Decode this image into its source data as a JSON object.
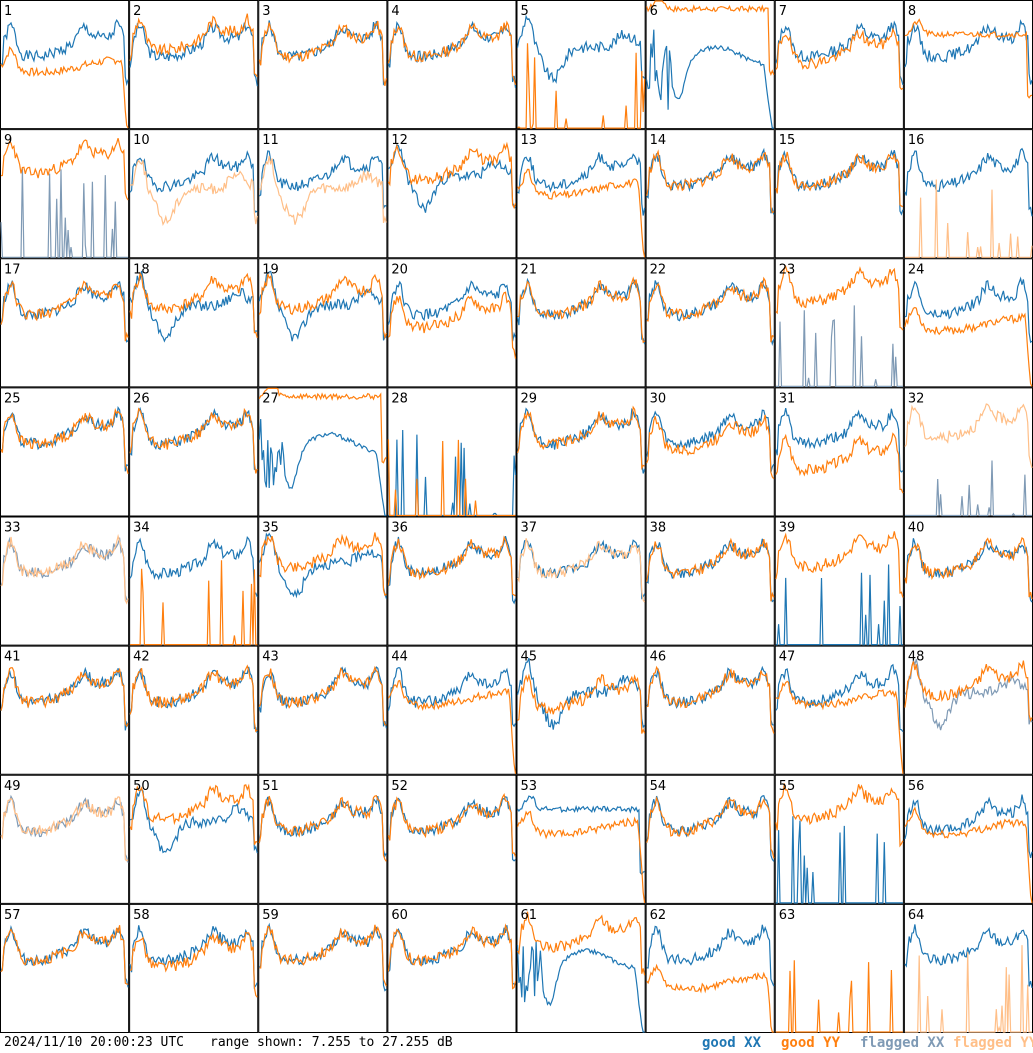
{
  "footer": {
    "timestamp": "2024/11/10 20:00:23 UTC",
    "range": "range shown: 7.255 to 27.255 dB"
  },
  "legend": {
    "good_xx": "good XX",
    "good_yy": "good YY",
    "flagged_xx": "flagged XX",
    "flagged_yy": "flagged YY"
  },
  "colors": {
    "good_xx": "#1f77b4",
    "good_yy": "#ff7f0e",
    "flagged_xx": "#7f9ab5",
    "flagged_yy": "#ffbf88"
  },
  "chart_data": {
    "type": "line",
    "layout": "8x8 panel grid",
    "ylim": [
      7.255,
      27.255
    ],
    "yunit": "dB",
    "grid": false,
    "panels": [
      {
        "label": "1",
        "xx": "good",
        "yy": "good",
        "xx_shape": "A",
        "yy_shape": "drop",
        "yy_off": -3
      },
      {
        "label": "2",
        "xx": "good",
        "yy": "good",
        "xx_shape": "A",
        "yy_shape": "A",
        "yy_off": 1
      },
      {
        "label": "3",
        "xx": "good",
        "yy": "good",
        "xx_shape": "A",
        "yy_shape": "A",
        "yy_off": 0
      },
      {
        "label": "4",
        "xx": "good",
        "yy": "good",
        "xx_shape": "A",
        "yy_shape": "A",
        "yy_off": 0
      },
      {
        "label": "5",
        "xx": "good",
        "yy": "good",
        "xx_shape": "B",
        "yy_shape": "spiky",
        "yy_off": 0
      },
      {
        "label": "6",
        "xx": "good",
        "yy": "good",
        "xx_shape": "C",
        "yy_shape": "flat",
        "yy_off": 4
      },
      {
        "label": "7",
        "xx": "good",
        "yy": "good",
        "xx_shape": "A",
        "yy_shape": "A",
        "yy_off": -1
      },
      {
        "label": "8",
        "xx": "good",
        "yy": "good",
        "xx_shape": "A",
        "yy_shape": "flat",
        "yy_off": 0
      },
      {
        "label": "9",
        "xx": "flagged",
        "yy": "good",
        "xx_shape": "spiky",
        "yy_shape": "A",
        "yy_off": 2
      },
      {
        "label": "10",
        "xx": "good",
        "yy": "flagged",
        "xx_shape": "A",
        "yy_shape": "B",
        "yy_off": -2
      },
      {
        "label": "11",
        "xx": "good",
        "yy": "flagged",
        "xx_shape": "A",
        "yy_shape": "B",
        "yy_off": -2
      },
      {
        "label": "12",
        "xx": "good",
        "yy": "good",
        "xx_shape": "B",
        "yy_shape": "A",
        "yy_off": 1
      },
      {
        "label": "13",
        "xx": "good",
        "yy": "good",
        "xx_shape": "A",
        "yy_shape": "drop",
        "yy_off": -2
      },
      {
        "label": "14",
        "xx": "good",
        "yy": "good",
        "xx_shape": "A",
        "yy_shape": "A",
        "yy_off": 0
      },
      {
        "label": "15",
        "xx": "good",
        "yy": "good",
        "xx_shape": "A",
        "yy_shape": "A",
        "yy_off": 0
      },
      {
        "label": "16",
        "xx": "good",
        "yy": "flagged",
        "xx_shape": "A",
        "yy_shape": "spiky",
        "yy_off": 0
      },
      {
        "label": "17",
        "xx": "good",
        "yy": "good",
        "xx_shape": "A",
        "yy_shape": "A",
        "yy_off": 0
      },
      {
        "label": "18",
        "xx": "good",
        "yy": "good",
        "xx_shape": "B",
        "yy_shape": "A",
        "yy_off": 1
      },
      {
        "label": "19",
        "xx": "good",
        "yy": "good",
        "xx_shape": "B",
        "yy_shape": "A",
        "yy_off": 1
      },
      {
        "label": "20",
        "xx": "good",
        "yy": "good",
        "xx_shape": "A",
        "yy_shape": "A",
        "yy_off": -2
      },
      {
        "label": "21",
        "xx": "good",
        "yy": "good",
        "xx_shape": "A",
        "yy_shape": "A",
        "yy_off": 0
      },
      {
        "label": "22",
        "xx": "good",
        "yy": "good",
        "xx_shape": "A",
        "yy_shape": "A",
        "yy_off": 0
      },
      {
        "label": "23",
        "xx": "flagged",
        "yy": "good",
        "xx_shape": "spiky",
        "yy_shape": "A",
        "yy_off": 2
      },
      {
        "label": "24",
        "xx": "good",
        "yy": "good",
        "xx_shape": "A",
        "yy_shape": "drop",
        "yy_off": -3
      },
      {
        "label": "25",
        "xx": "good",
        "yy": "good",
        "xx_shape": "A",
        "yy_shape": "A",
        "yy_off": 0
      },
      {
        "label": "26",
        "xx": "good",
        "yy": "good",
        "xx_shape": "A",
        "yy_shape": "A",
        "yy_off": 0
      },
      {
        "label": "27",
        "xx": "good",
        "yy": "good",
        "xx_shape": "C",
        "yy_shape": "flat",
        "yy_off": 4
      },
      {
        "label": "28",
        "xx": "good",
        "yy": "good",
        "xx_shape": "spiky",
        "yy_shape": "spiky",
        "yy_off": 0
      },
      {
        "label": "29",
        "xx": "good",
        "yy": "good",
        "xx_shape": "A",
        "yy_shape": "A",
        "yy_off": 0
      },
      {
        "label": "30",
        "xx": "good",
        "yy": "good",
        "xx_shape": "A",
        "yy_shape": "A",
        "yy_off": -1
      },
      {
        "label": "31",
        "xx": "good",
        "yy": "good",
        "xx_shape": "A",
        "yy_shape": "A",
        "yy_off": -4
      },
      {
        "label": "32",
        "xx": "flagged",
        "yy": "flagged",
        "xx_shape": "spiky",
        "yy_shape": "A",
        "yy_off": 1
      },
      {
        "label": "33",
        "xx": "flagged",
        "yy": "flagged",
        "xx_shape": "A",
        "yy_shape": "A",
        "yy_off": 0
      },
      {
        "label": "34",
        "xx": "good",
        "yy": "good",
        "xx_shape": "A",
        "yy_shape": "spiky",
        "yy_off": 0
      },
      {
        "label": "35",
        "xx": "good",
        "yy": "good",
        "xx_shape": "B",
        "yy_shape": "A",
        "yy_off": 1
      },
      {
        "label": "36",
        "xx": "good",
        "yy": "good",
        "xx_shape": "A",
        "yy_shape": "A",
        "yy_off": 0
      },
      {
        "label": "37",
        "xx": "good",
        "yy": "flagged",
        "xx_shape": "A",
        "yy_shape": "A",
        "yy_off": 0
      },
      {
        "label": "38",
        "xx": "good",
        "yy": "good",
        "xx_shape": "A",
        "yy_shape": "A",
        "yy_off": 0
      },
      {
        "label": "39",
        "xx": "good",
        "yy": "good",
        "xx_shape": "spiky",
        "yy_shape": "A",
        "yy_off": 1
      },
      {
        "label": "40",
        "xx": "good",
        "yy": "good",
        "xx_shape": "A",
        "yy_shape": "A",
        "yy_off": 0
      },
      {
        "label": "41",
        "xx": "good",
        "yy": "good",
        "xx_shape": "A",
        "yy_shape": "A",
        "yy_off": 0
      },
      {
        "label": "42",
        "xx": "good",
        "yy": "good",
        "xx_shape": "A",
        "yy_shape": "A",
        "yy_off": 0
      },
      {
        "label": "43",
        "xx": "good",
        "yy": "good",
        "xx_shape": "A",
        "yy_shape": "A",
        "yy_off": 0
      },
      {
        "label": "44",
        "xx": "good",
        "yy": "good",
        "xx_shape": "A",
        "yy_shape": "drop",
        "yy_off": -1
      },
      {
        "label": "45",
        "xx": "good",
        "yy": "good",
        "xx_shape": "B",
        "yy_shape": "A",
        "yy_off": -1
      },
      {
        "label": "46",
        "xx": "good",
        "yy": "good",
        "xx_shape": "A",
        "yy_shape": "A",
        "yy_off": 0
      },
      {
        "label": "47",
        "xx": "good",
        "yy": "good",
        "xx_shape": "A",
        "yy_shape": "drop",
        "yy_off": -1
      },
      {
        "label": "48",
        "xx": "flagged",
        "yy": "good",
        "xx_shape": "B",
        "yy_shape": "A",
        "yy_off": 1
      },
      {
        "label": "49",
        "xx": "flagged",
        "yy": "flagged",
        "xx_shape": "A",
        "yy_shape": "A",
        "yy_off": 0
      },
      {
        "label": "50",
        "xx": "good",
        "yy": "good",
        "xx_shape": "B",
        "yy_shape": "A",
        "yy_off": 2
      },
      {
        "label": "51",
        "xx": "good",
        "yy": "good",
        "xx_shape": "A",
        "yy_shape": "A",
        "yy_off": 0
      },
      {
        "label": "52",
        "xx": "good",
        "yy": "good",
        "xx_shape": "A",
        "yy_shape": "A",
        "yy_off": 0
      },
      {
        "label": "53",
        "xx": "good",
        "yy": "good",
        "xx_shape": "flat",
        "yy_shape": "drop",
        "yy_off": -1
      },
      {
        "label": "54",
        "xx": "good",
        "yy": "good",
        "xx_shape": "A",
        "yy_shape": "A",
        "yy_off": 0
      },
      {
        "label": "55",
        "xx": "good",
        "yy": "good",
        "xx_shape": "spiky",
        "yy_shape": "A",
        "yy_off": 2
      },
      {
        "label": "56",
        "xx": "good",
        "yy": "good",
        "xx_shape": "A",
        "yy_shape": "drop",
        "yy_off": -1
      },
      {
        "label": "57",
        "xx": "good",
        "yy": "good",
        "xx_shape": "A",
        "yy_shape": "A",
        "yy_off": 0
      },
      {
        "label": "58",
        "xx": "good",
        "yy": "good",
        "xx_shape": "A",
        "yy_shape": "A",
        "yy_off": -1
      },
      {
        "label": "59",
        "xx": "good",
        "yy": "good",
        "xx_shape": "A",
        "yy_shape": "A",
        "yy_off": 0
      },
      {
        "label": "60",
        "xx": "good",
        "yy": "good",
        "xx_shape": "A",
        "yy_shape": "A",
        "yy_off": 0
      },
      {
        "label": "61",
        "xx": "good",
        "yy": "good",
        "xx_shape": "C",
        "yy_shape": "A",
        "yy_off": 2
      },
      {
        "label": "62",
        "xx": "good",
        "yy": "good",
        "xx_shape": "A",
        "yy_shape": "drop",
        "yy_off": -5
      },
      {
        "label": "63",
        "xx": "good",
        "yy": "good",
        "xx_shape": "none",
        "yy_shape": "spiky",
        "yy_off": 0
      },
      {
        "label": "64",
        "xx": "good",
        "yy": "flagged",
        "xx_shape": "A",
        "yy_shape": "spiky",
        "yy_off": 0
      }
    ]
  }
}
